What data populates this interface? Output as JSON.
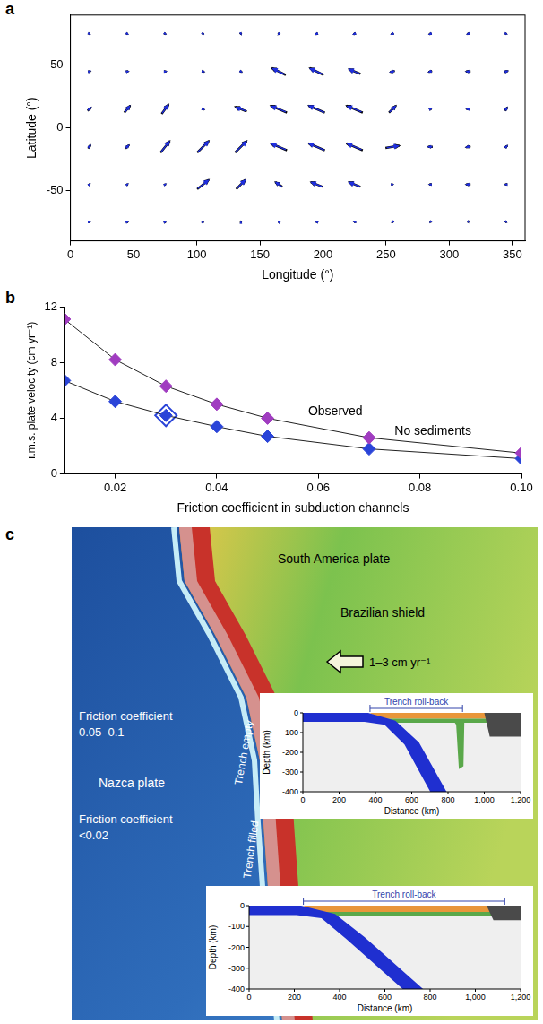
{
  "chart_data": [
    {
      "label": "a",
      "type": "vector",
      "xlabel": "Longitude (°)",
      "ylabel": "Latitude (°)",
      "xlim": [
        0,
        360
      ],
      "xticks": [
        0,
        50,
        100,
        150,
        200,
        250,
        300,
        350
      ],
      "ylim": [
        -90,
        90
      ],
      "yticks": [
        -50,
        0,
        50
      ],
      "lon": [
        15,
        45,
        75,
        105,
        135,
        165,
        195,
        225,
        255,
        285,
        315,
        345
      ],
      "lat": [
        75,
        45,
        15,
        -15,
        -45,
        -75
      ],
      "series": [
        {
          "color": "#000000",
          "u": [
            [
              0.5,
              0.5,
              0.5,
              0.4,
              0.3,
              -0.5,
              -1,
              -1,
              -1,
              -1,
              -1,
              0.5
            ],
            [
              1,
              1,
              1,
              1,
              0.8,
              -6,
              -6,
              -5,
              -2,
              -1.5,
              -2,
              1.5
            ],
            [
              1.5,
              2.5,
              3,
              1,
              -5,
              -7,
              -7,
              -7,
              3,
              1,
              -1.5,
              1
            ],
            [
              1,
              1.5,
              4,
              5,
              5,
              -7,
              -7,
              -7,
              6,
              -2,
              -2,
              1
            ],
            [
              0.5,
              0.5,
              0.5,
              5,
              4,
              -3,
              -5,
              -5,
              0.5,
              -1,
              -2,
              -1
            ],
            [
              0.5,
              0.6,
              0.5,
              0.3,
              0,
              -0.3,
              -0.5,
              -0.5,
              -0.4,
              -0.2,
              0.1,
              0.3
            ]
          ],
          "v": [
            [
              -0.3,
              -0.3,
              -0.3,
              -0.4,
              -0.5,
              -0.6,
              -0.5,
              -0.5,
              -0.5,
              -0.5,
              -0.3,
              -0.2
            ],
            [
              0.3,
              0.2,
              0,
              -0.3,
              -0.5,
              3,
              3,
              2,
              -0.5,
              -0.5,
              0,
              0.5
            ],
            [
              1.5,
              3,
              4,
              -0.5,
              2,
              3,
              3,
              3,
              3,
              0.5,
              0,
              1.5
            ],
            [
              1.5,
              1.5,
              5,
              5,
              5,
              3,
              3,
              3,
              1,
              0,
              -0.5,
              1
            ],
            [
              0.5,
              0.5,
              0.3,
              4,
              4,
              2,
              2,
              2,
              0,
              0,
              0,
              0
            ],
            [
              0,
              0.2,
              0.3,
              0.4,
              0.4,
              0.3,
              0.2,
              0,
              -0.2,
              -0.3,
              -0.3,
              -0.2
            ]
          ]
        },
        {
          "color": "#1f2fe0",
          "u": [
            [
              0.4,
              0.5,
              0.4,
              0.4,
              0.2,
              -0.4,
              -0.9,
              -1,
              -0.9,
              -0.9,
              -0.8,
              0.4
            ],
            [
              0.8,
              0.9,
              0.9,
              0.8,
              0.6,
              -5,
              -5.5,
              -4.5,
              -1.8,
              -1.2,
              -1.6,
              1.2
            ],
            [
              1.2,
              2,
              2.6,
              0.8,
              -4,
              -6,
              -6.5,
              -6,
              2.5,
              0.8,
              -1.2,
              0.8
            ],
            [
              0.8,
              1.2,
              3.5,
              4.5,
              4.5,
              -6,
              -6.5,
              -6,
              5,
              -1.6,
              -1.6,
              0.8
            ],
            [
              0.4,
              0.4,
              0.4,
              4.5,
              3.5,
              -2.5,
              -4.5,
              -4.5,
              0.4,
              -0.8,
              -1.6,
              -0.8
            ],
            [
              0.4,
              0.5,
              0.4,
              0.3,
              0,
              -0.3,
              -0.4,
              -0.4,
              -0.3,
              -0.2,
              0.1,
              0.2
            ]
          ],
          "v": [
            [
              -0.2,
              -0.3,
              -0.3,
              -0.3,
              -0.4,
              -0.5,
              -0.5,
              -0.4,
              -0.4,
              -0.4,
              -0.3,
              -0.2
            ],
            [
              0.3,
              0.2,
              0,
              -0.2,
              -0.4,
              2.5,
              2.5,
              2,
              -0.4,
              -0.4,
              0,
              0.4
            ],
            [
              1.2,
              2.5,
              3.5,
              -0.3,
              1.5,
              2.5,
              2.8,
              2.5,
              2.5,
              0.4,
              0,
              1.2
            ],
            [
              1.2,
              1.2,
              4.5,
              4.5,
              4.5,
              2.5,
              2.8,
              2.5,
              0.8,
              0,
              -0.4,
              0.8
            ],
            [
              0.4,
              0.4,
              0.3,
              3.5,
              3.5,
              1.8,
              1.8,
              1.8,
              0,
              0,
              0,
              0
            ],
            [
              0,
              0.2,
              0.2,
              0.3,
              0.3,
              0.3,
              0.2,
              0,
              -0.2,
              -0.2,
              -0.2,
              -0.2
            ]
          ]
        }
      ]
    },
    {
      "label": "b",
      "type": "line",
      "xlabel": "Friction coefficient in subduction channels",
      "ylabel": "r.m.s. plate velocity (cm yr⁻¹)",
      "xlim": [
        0.01,
        0.1
      ],
      "xticks": [
        0.02,
        0.04,
        0.06,
        0.08,
        {
          "value": 0.1,
          "label": "0.10"
        }
      ],
      "ylim": [
        0,
        12
      ],
      "yticks": [
        0,
        4,
        8,
        12
      ],
      "grid": false,
      "x": [
        0.01,
        0.02,
        0.03,
        0.04,
        0.05,
        0.07,
        0.1
      ],
      "series": [
        {
          "color": "#a03cc0",
          "marker": "diamond",
          "values": [
            11.1,
            8.2,
            6.3,
            5.0,
            4.0,
            2.6,
            1.5
          ]
        },
        {
          "color": "#2a44d8",
          "marker": "diamond",
          "values": [
            6.7,
            5.2,
            4.2,
            3.4,
            2.7,
            1.8,
            1.1
          ]
        }
      ],
      "reference": {
        "label": "Observed",
        "value": 3.8,
        "x": [
          0.01,
          0.09
        ],
        "line_style": "dashed",
        "label_x": 0.058,
        "label_y": 4.2
      },
      "highlight": {
        "x": 0.03,
        "y": 4.2,
        "color": "#2a44d8",
        "marker": "diamond"
      },
      "annotations": [
        {
          "text": "No sediments",
          "x": 0.075,
          "y": 2.8
        }
      ]
    }
  ],
  "panel_c": {
    "label": "c",
    "texts": {
      "plate": "South America plate",
      "shield": "Brazilian shield",
      "velocity": "1–3 cm yr⁻¹",
      "friction_high": [
        "Friction coefficient",
        "0.05–0.1"
      ],
      "nazca": "Nazca plate",
      "friction_low": [
        "Friction coefficient",
        "<0.02"
      ],
      "trench_empty": "Trench empty",
      "trench_filled": "Trench filled"
    },
    "insets": [
      {
        "xlabel": "Distance (km)",
        "ylabel": "Depth (km)",
        "xlim": [
          0,
          1200
        ],
        "xticks": [
          0,
          200,
          400,
          600,
          800,
          {
            "value": 1000,
            "label": "1,000"
          },
          {
            "value": 1200,
            "label": "1,200"
          }
        ],
        "ylim": [
          -400,
          0
        ],
        "yticks": [
          0,
          -100,
          -200,
          -300,
          -400
        ],
        "rollback": [
          370,
          880
        ],
        "rollback_label": "Trench roll-back"
      },
      {
        "xlabel": "Distance (km)",
        "ylabel": "Depth (km)",
        "xlim": [
          0,
          1200
        ],
        "xticks": [
          0,
          200,
          400,
          600,
          800,
          {
            "value": 1000,
            "label": "1,000"
          },
          {
            "value": 1200,
            "label": "1,200"
          }
        ],
        "ylim": [
          -400,
          0
        ],
        "yticks": [
          0,
          -100,
          -200,
          -300,
          -400
        ],
        "rollback": [
          240,
          1130
        ],
        "rollback_label": "Trench roll-back"
      }
    ]
  }
}
